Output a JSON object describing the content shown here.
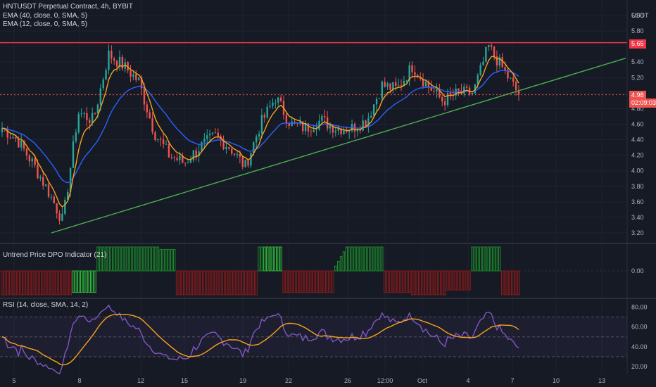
{
  "header": {
    "symbol_line": "HNTUSDT Perpetual Contract, 4h, BYBIT",
    "ema1": "EMA (40, close, 0, SMA, 5)",
    "ema2": "EMA (12, close, 0, SMA, 5)"
  },
  "currency": "USDT",
  "price_axis": [
    "6.00",
    "5.80",
    "5.60",
    "5.40",
    "5.20",
    "5.00",
    "4.80",
    "4.60",
    "4.40",
    "4.20",
    "4.00",
    "3.80",
    "3.60",
    "3.40",
    "3.20"
  ],
  "resistance_label": "5.65",
  "last_price_label": "4.98",
  "countdown_label": "02:09:03",
  "colors": {
    "background": "#161a25",
    "up": "#26a69a",
    "down": "#ef5350",
    "resistance": "#f23645",
    "trendline": "#4caf50",
    "ema12": "#f7a21b",
    "ema40": "#2962ff",
    "rsi_line": "#7e57c2",
    "rsi_ma": "#f7a21b",
    "dpo_up": "#1b8a2a",
    "dpo_down": "#8b1a1a"
  },
  "dpo": {
    "title": "Untrend Price DPO Indicator (21)",
    "axis_label": "0.00"
  },
  "rsi": {
    "title": "RSI (14, close, SMA, 14, 2)",
    "axis_labels": [
      "80.00",
      "60.00",
      "40.00",
      "20.00"
    ]
  },
  "x_axis": [
    "5",
    "8",
    "12",
    "15",
    "19",
    "22",
    "26",
    "12:00",
    "Oct",
    "4",
    "7",
    "10",
    "13"
  ],
  "chart_data": {
    "type": "candlestick",
    "timeframe": "4h",
    "ylim": [
      3.1,
      6.05
    ],
    "resistance_level": 5.65,
    "last_price": 4.98,
    "trendline": {
      "from": {
        "x": "6 Sep",
        "y": 3.2
      },
      "to": {
        "x": "9 Oct",
        "y": 5.45
      }
    },
    "price_path": [
      {
        "x": "3 Sep",
        "close": 4.55
      },
      {
        "x": "4 Sep",
        "close": 4.4
      },
      {
        "x": "5 Sep",
        "close": 4.1
      },
      {
        "x": "6 Sep",
        "close": 3.75
      },
      {
        "x": "7 Sep",
        "close": 3.35
      },
      {
        "x": "8 Sep",
        "close": 4.75
      },
      {
        "x": "9 Sep",
        "close": 4.65
      },
      {
        "x": "10 Sep",
        "close": 5.5
      },
      {
        "x": "11 Sep",
        "close": 5.35
      },
      {
        "x": "12 Sep",
        "close": 5.15
      },
      {
        "x": "13 Sep",
        "close": 4.5
      },
      {
        "x": "14 Sep",
        "close": 4.2
      },
      {
        "x": "15 Sep",
        "close": 4.1
      },
      {
        "x": "16 Sep",
        "close": 4.3
      },
      {
        "x": "17 Sep",
        "close": 4.45
      },
      {
        "x": "18 Sep",
        "close": 4.3
      },
      {
        "x": "19 Sep",
        "close": 4.05
      },
      {
        "x": "20 Sep",
        "close": 4.6
      },
      {
        "x": "21 Sep",
        "close": 4.95
      },
      {
        "x": "22 Sep",
        "close": 4.6
      },
      {
        "x": "23 Sep",
        "close": 4.55
      },
      {
        "x": "24 Sep",
        "close": 4.65
      },
      {
        "x": "25 Sep",
        "close": 4.55
      },
      {
        "x": "26 Sep",
        "close": 4.55
      },
      {
        "x": "27 Sep",
        "close": 4.65
      },
      {
        "x": "28 Sep",
        "close": 5.1
      },
      {
        "x": "29 Sep",
        "close": 5.05
      },
      {
        "x": "30 Sep",
        "close": 5.35
      },
      {
        "x": "1 Oct",
        "close": 5.1
      },
      {
        "x": "2 Oct",
        "close": 4.9
      },
      {
        "x": "3 Oct",
        "close": 5.0
      },
      {
        "x": "4 Oct",
        "close": 5.0
      },
      {
        "x": "5 Oct",
        "close": 5.6
      },
      {
        "x": "6 Oct",
        "close": 5.3
      },
      {
        "x": "7 Oct",
        "close": 4.98
      }
    ],
    "rsi_range": [
      0,
      100
    ],
    "rsi_levels": [
      70,
      50,
      30
    ]
  }
}
